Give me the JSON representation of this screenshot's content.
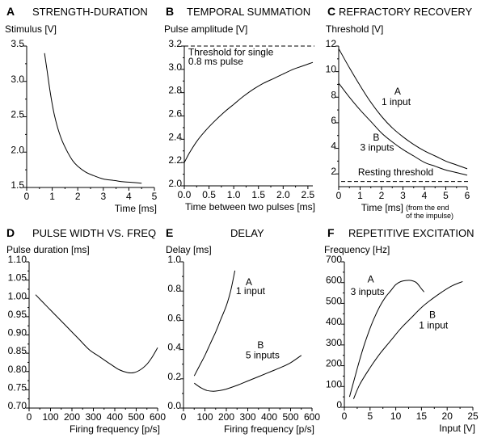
{
  "chart_data": [
    {
      "id": "A",
      "type": "line",
      "letter": "A",
      "title": "STRENGTH-DURATION",
      "ylabel": "Stimulus [V]",
      "xlabel": "Time [ms]",
      "xlim": [
        0,
        5
      ],
      "ylim": [
        1.5,
        3.5
      ],
      "xticks": [
        0,
        1,
        2,
        3,
        4,
        5
      ],
      "xtick_labels": [
        "0",
        "1",
        "2",
        "3",
        "4",
        "5"
      ],
      "yticks": [
        1.5,
        2.0,
        2.5,
        3.0,
        3.5
      ],
      "ytick_labels": [
        "1.5",
        "2.0",
        "2.5",
        "3.0",
        "3.5"
      ],
      "series": [
        {
          "name": "strength-duration",
          "x": [
            0.7,
            0.8,
            0.9,
            1.0,
            1.1,
            1.25,
            1.4,
            1.6,
            1.8,
            2.0,
            2.3,
            2.6,
            3.0,
            3.4,
            3.8,
            4.2,
            4.5
          ],
          "y": [
            3.4,
            3.15,
            2.9,
            2.68,
            2.5,
            2.3,
            2.15,
            2.0,
            1.88,
            1.8,
            1.72,
            1.67,
            1.62,
            1.6,
            1.58,
            1.57,
            1.56
          ]
        }
      ],
      "annotations": []
    },
    {
      "id": "B",
      "type": "line",
      "letter": "B",
      "title": "TEMPORAL SUMMATION",
      "ylabel": "Pulse amplitude [V]",
      "xlabel": "Time between two pulses [ms]",
      "xlim": [
        0,
        2.6
      ],
      "ylim": [
        2.0,
        3.2
      ],
      "xticks": [
        0,
        0.5,
        1.0,
        1.5,
        2.0,
        2.5
      ],
      "xtick_labels": [
        "0.0",
        "0.5",
        "1.0",
        "1.5",
        "2.0",
        "2.5"
      ],
      "yticks": [
        2.0,
        2.2,
        2.4,
        2.6,
        2.8,
        3.0,
        3.2
      ],
      "ytick_labels": [
        "2.0",
        "2.2",
        "2.4",
        "2.6",
        "2.8",
        "3.0",
        "3.2"
      ],
      "series": [
        {
          "name": "summation",
          "x": [
            0,
            0.1,
            0.25,
            0.4,
            0.6,
            0.8,
            1.0,
            1.2,
            1.4,
            1.6,
            1.8,
            2.0,
            2.2,
            2.4,
            2.6
          ],
          "y": [
            2.2,
            2.28,
            2.38,
            2.46,
            2.55,
            2.63,
            2.7,
            2.77,
            2.83,
            2.88,
            2.92,
            2.96,
            3.0,
            3.03,
            3.06
          ]
        }
      ],
      "hlines": [
        {
          "y": 3.2,
          "style": "dashed"
        }
      ],
      "annotations": [
        {
          "text": "Threshold for single",
          "x": 0.08,
          "y": 3.12
        },
        {
          "text": "0.8 ms pulse",
          "x": 0.08,
          "y": 3.04
        }
      ]
    },
    {
      "id": "C",
      "type": "line",
      "letter": "C",
      "title": "REFRACTORY RECOVERY",
      "ylabel": "Threshold [V]",
      "xlabel": "Time [ms]",
      "xlabel_note": [
        "(from the end",
        "of the impulse)"
      ],
      "xlim": [
        0,
        6
      ],
      "ylim": [
        1,
        12
      ],
      "xticks": [
        0,
        1,
        2,
        3,
        4,
        5,
        6
      ],
      "xtick_labels": [
        "0",
        "1",
        "2",
        "3",
        "4",
        "5",
        "6"
      ],
      "yticks": [
        2,
        4,
        6,
        8,
        10,
        12
      ],
      "ytick_labels": [
        "2",
        "4",
        "6",
        "8",
        "10",
        "12"
      ],
      "series": [
        {
          "name": "A 1 input",
          "x": [
            0,
            0.5,
            1,
            1.5,
            2,
            2.5,
            3,
            3.5,
            4,
            4.5,
            5,
            5.5,
            6
          ],
          "y": [
            11.8,
            10.3,
            8.9,
            7.6,
            6.5,
            5.6,
            4.9,
            4.3,
            3.8,
            3.4,
            3.0,
            2.7,
            2.4
          ]
        },
        {
          "name": "B 3 inputs",
          "x": [
            0,
            0.5,
            1,
            1.5,
            2,
            2.5,
            3,
            3.5,
            4,
            4.5,
            5,
            5.5,
            6
          ],
          "y": [
            9.1,
            8.0,
            7.0,
            6.1,
            5.2,
            4.5,
            3.9,
            3.4,
            2.9,
            2.6,
            2.3,
            2.1,
            1.9
          ]
        }
      ],
      "hlines": [
        {
          "y": 1.4,
          "style": "dashed",
          "label": "Resting threshold"
        }
      ],
      "annotations": [
        {
          "text": "A",
          "x": 2.6,
          "y": 8.2
        },
        {
          "text": "1 input",
          "x": 2.0,
          "y": 7.4
        },
        {
          "text": "B",
          "x": 1.6,
          "y": 4.6
        },
        {
          "text": "3 inputs",
          "x": 1.0,
          "y": 3.8
        },
        {
          "text": "Resting threshold",
          "x": 0.9,
          "y": 1.9
        }
      ]
    },
    {
      "id": "D",
      "type": "line",
      "letter": "D",
      "title": "PULSE WIDTH VS. FREQ",
      "ylabel": "Pulse duration [ms]",
      "xlabel": "Firing frequency [p/s]",
      "xlim": [
        0,
        600
      ],
      "ylim": [
        0.7,
        1.1
      ],
      "xticks": [
        0,
        100,
        200,
        300,
        400,
        500,
        600
      ],
      "xtick_labels": [
        "0",
        "100",
        "200",
        "300",
        "400",
        "500",
        "600"
      ],
      "yticks": [
        0.7,
        0.75,
        0.8,
        0.85,
        0.9,
        0.95,
        1.0,
        1.05,
        1.1
      ],
      "ytick_labels": [
        "0.70",
        "0.75",
        "0.80",
        "0.85",
        "0.90",
        "0.95",
        "1.00",
        "1.05",
        "1.10"
      ],
      "series": [
        {
          "name": "pulse-width",
          "x": [
            30,
            80,
            130,
            180,
            230,
            280,
            330,
            380,
            420,
            460,
            490,
            520,
            550,
            575,
            600
          ],
          "y": [
            1.01,
            0.98,
            0.95,
            0.92,
            0.89,
            0.86,
            0.84,
            0.82,
            0.805,
            0.797,
            0.797,
            0.805,
            0.82,
            0.84,
            0.865
          ]
        }
      ],
      "annotations": []
    },
    {
      "id": "E",
      "type": "line",
      "letter": "E",
      "title": "DELAY",
      "ylabel": "Delay [ms]",
      "xlabel": "Firing frequency [p/s]",
      "xlim": [
        0,
        600
      ],
      "ylim": [
        0.0,
        1.0
      ],
      "xticks": [
        0,
        100,
        200,
        300,
        400,
        500,
        600
      ],
      "xtick_labels": [
        "0",
        "100",
        "200",
        "300",
        "400",
        "500",
        "600"
      ],
      "yticks": [
        0.0,
        0.2,
        0.4,
        0.6,
        0.8,
        1.0
      ],
      "ytick_labels": [
        "0.0",
        "0.2",
        "0.4",
        "0.6",
        "0.8",
        "1.0"
      ],
      "series": [
        {
          "name": "A 1 input",
          "x": [
            50,
            75,
            100,
            125,
            150,
            175,
            200,
            220,
            240
          ],
          "y": [
            0.22,
            0.29,
            0.36,
            0.44,
            0.52,
            0.61,
            0.7,
            0.8,
            0.94
          ]
        },
        {
          "name": "B 5 inputs",
          "x": [
            50,
            80,
            110,
            140,
            170,
            200,
            250,
            300,
            350,
            400,
            450,
            500,
            550
          ],
          "y": [
            0.17,
            0.14,
            0.12,
            0.115,
            0.12,
            0.13,
            0.155,
            0.185,
            0.215,
            0.245,
            0.275,
            0.31,
            0.36
          ]
        }
      ],
      "annotations": [
        {
          "text": "A",
          "x": 290,
          "y": 0.84
        },
        {
          "text": "1 input",
          "x": 245,
          "y": 0.78
        },
        {
          "text": "B",
          "x": 345,
          "y": 0.41
        },
        {
          "text": "5 inputs",
          "x": 290,
          "y": 0.34
        }
      ]
    },
    {
      "id": "F",
      "type": "line",
      "letter": "F",
      "title": "REPETITIVE EXCITATION",
      "ylabel": "Frequency [Hz]",
      "xlabel": "Input [V]",
      "xlim": [
        0,
        25
      ],
      "ylim": [
        0,
        700
      ],
      "xticks": [
        0,
        5,
        10,
        15,
        20,
        25
      ],
      "xtick_labels": [
        "0",
        "5",
        "10",
        "15",
        "20",
        "25"
      ],
      "yticks": [
        0,
        100,
        200,
        300,
        400,
        500,
        600,
        700
      ],
      "ytick_labels": [
        "0",
        "100",
        "200",
        "300",
        "400",
        "500",
        "600",
        "700"
      ],
      "series": [
        {
          "name": "A 3 inputs",
          "x": [
            1,
            2,
            3,
            4,
            5,
            6,
            7,
            8,
            9,
            10,
            11,
            12,
            13,
            14,
            15,
            15.5
          ],
          "y": [
            50,
            140,
            230,
            310,
            380,
            440,
            490,
            530,
            560,
            590,
            605,
            610,
            610,
            600,
            570,
            555
          ]
        },
        {
          "name": "B 1 input",
          "x": [
            1.8,
            3,
            5,
            7,
            9,
            11,
            13,
            15,
            17,
            19,
            21,
            23
          ],
          "y": [
            40,
            110,
            190,
            260,
            320,
            380,
            430,
            480,
            520,
            555,
            585,
            605
          ]
        }
      ],
      "annotations": [
        {
          "text": "A",
          "x": 4.5,
          "y": 600
        },
        {
          "text": "3 inputs",
          "x": 1.2,
          "y": 540
        },
        {
          "text": "B",
          "x": 16.5,
          "y": 430
        },
        {
          "text": "1 input",
          "x": 14.5,
          "y": 380
        }
      ]
    }
  ]
}
